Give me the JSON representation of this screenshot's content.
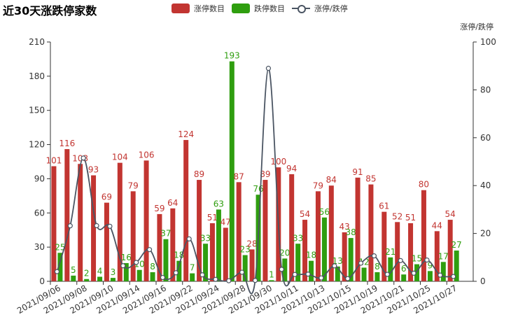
{
  "chart_data": {
    "type": "bar",
    "title": "近30天涨跌停家数",
    "legend": [
      "涨停数目",
      "跌停数目",
      "涨停/跌停"
    ],
    "right_axis_label": "涨停/跌停",
    "colors": {
      "up": "#c23531",
      "down": "#2f9e0f",
      "line": "#4b5563",
      "up_label": "#c23531",
      "down_label": "#2f9e0f"
    },
    "ylim_left": [
      0,
      210
    ],
    "yticks_left": [
      0,
      30,
      60,
      90,
      120,
      150,
      180,
      210
    ],
    "ylim_right": [
      0,
      100
    ],
    "yticks_right": [
      0,
      20,
      40,
      60,
      80,
      100
    ],
    "x_tick_labels": [
      "2021/09/06",
      "2021/09/08",
      "2021/09/10",
      "2021/09/14",
      "2021/09/16",
      "2021/09/22",
      "2021/09/24",
      "2021/09/28",
      "2021/09/30",
      "2021/10/11",
      "2021/10/13",
      "2021/10/15",
      "2021/10/19",
      "2021/10/21",
      "2021/10/25",
      "2021/10/27"
    ],
    "categories": [
      "2021/09/06",
      "2021/09/07",
      "2021/09/08",
      "2021/09/09",
      "2021/09/10",
      "2021/09/13",
      "2021/09/14",
      "2021/09/15",
      "2021/09/16",
      "2021/09/17",
      "2021/09/22",
      "2021/09/23",
      "2021/09/24",
      "2021/09/27",
      "2021/09/28",
      "2021/09/29",
      "2021/09/30",
      "2021/10/08",
      "2021/10/11",
      "2021/10/12",
      "2021/10/13",
      "2021/10/14",
      "2021/10/15",
      "2021/10/18",
      "2021/10/19",
      "2021/10/20",
      "2021/10/21",
      "2021/10/22",
      "2021/10/25",
      "2021/10/26",
      "2021/10/27",
      "2021/10/28"
    ],
    "series": [
      {
        "name": "涨停数目",
        "values": [
          101,
          116,
          103,
          93,
          69,
          104,
          79,
          106,
          59,
          64,
          124,
          89,
          51,
          47,
          87,
          28,
          89,
          100,
          94,
          54,
          79,
          84,
          43,
          91,
          85,
          61,
          52,
          51,
          80,
          44,
          54,
          0
        ]
      },
      {
        "name": "跌停数目",
        "values": [
          25,
          5,
          2,
          4,
          3,
          16,
          10,
          8,
          37,
          18,
          7,
          33,
          63,
          193,
          23,
          76,
          1,
          20,
          33,
          18,
          56,
          13,
          38,
          12,
          8,
          21,
          6,
          15,
          9,
          17,
          27,
          0
        ]
      },
      {
        "name": "涨停/跌停",
        "values": [
          4.04,
          23.2,
          51.5,
          23.25,
          23,
          6.5,
          7.9,
          13.25,
          1.59,
          3.56,
          17.71,
          2.7,
          0.81,
          0.24,
          3.78,
          0.37,
          89,
          5,
          2.85,
          3,
          1.41,
          6.46,
          1.13,
          7.58,
          10.63,
          2.9,
          8.67,
          3.4,
          8.89,
          2.59,
          2,
          0
        ]
      }
    ]
  }
}
